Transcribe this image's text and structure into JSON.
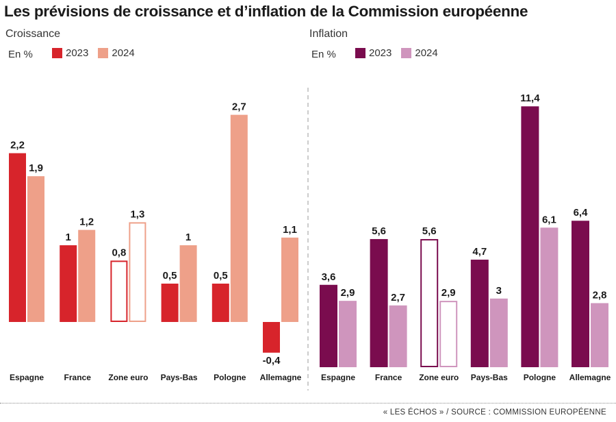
{
  "title": "Les prévisions de croissance et d’inflation de la Commission européenne",
  "source": "« LES ÉCHOS » / SOURCE : COMMISSION EUROPÉENNE",
  "chart_data": [
    {
      "type": "bar",
      "title": "Croissance",
      "unit": "En %",
      "categories": [
        "Espagne",
        "France",
        "Zone euro",
        "Pays-Bas",
        "Pologne",
        "Allemagne"
      ],
      "series": [
        {
          "name": "2023",
          "color": "#d7242b",
          "values": [
            2.2,
            1,
            0.8,
            0.5,
            0.5,
            -0.4
          ],
          "labels": [
            "2,2",
            "1",
            "0,8",
            "0,5",
            "0,5",
            "-0,4"
          ]
        },
        {
          "name": "2024",
          "color": "#eea089",
          "values": [
            1.9,
            1.2,
            1.3,
            1,
            2.7,
            1.1
          ],
          "labels": [
            "1,9",
            "1,2",
            "1,3",
            "1",
            "2,7",
            "1,1"
          ]
        }
      ],
      "highlight_category": "Zone euro",
      "ylim": [
        -0.6,
        3.0
      ]
    },
    {
      "type": "bar",
      "title": "Inflation",
      "unit": "En %",
      "categories": [
        "Espagne",
        "France",
        "Zone euro",
        "Pays-Bas",
        "Pologne",
        "Allemagne"
      ],
      "series": [
        {
          "name": "2023",
          "color": "#7a0c4e",
          "values": [
            3.6,
            5.6,
            5.6,
            4.7,
            11.4,
            6.4
          ],
          "labels": [
            "3,6",
            "5,6",
            "5,6",
            "4,7",
            "11,4",
            "6,4"
          ]
        },
        {
          "name": "2024",
          "color": "#cf95bd",
          "values": [
            2.9,
            2.7,
            2.9,
            3,
            6.1,
            2.8
          ],
          "labels": [
            "2,9",
            "2,7",
            "2,9",
            "3",
            "6,1",
            "2,8"
          ]
        }
      ],
      "highlight_category": "Zone euro",
      "ylim": [
        0,
        12
      ]
    }
  ]
}
